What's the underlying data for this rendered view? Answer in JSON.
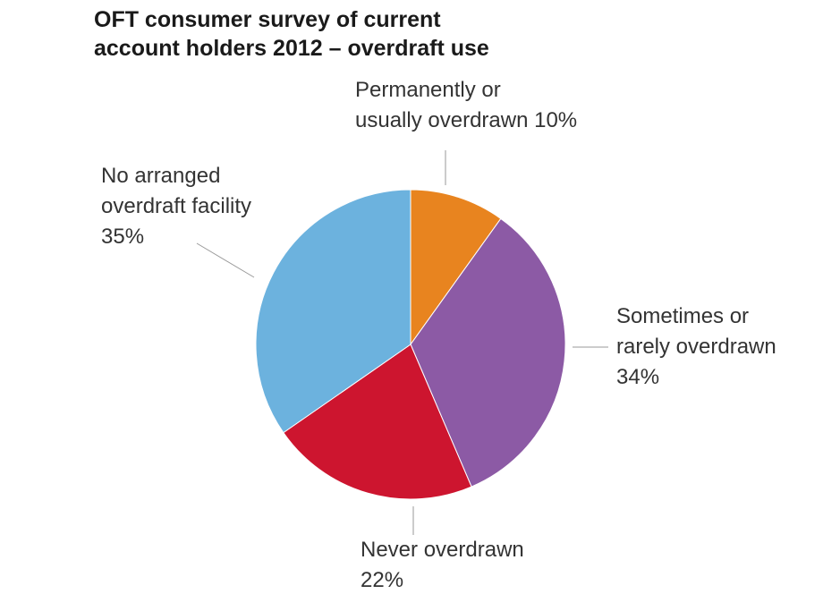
{
  "chart_data": {
    "type": "pie",
    "title_line1": "OFT consumer survey of current",
    "title_line2": "account holders 2012 – overdraft use",
    "slices": [
      {
        "label_line1": "Permanently or",
        "label_line2": "usually overdrawn 10%",
        "label_line3": "",
        "value": 10,
        "color": "#E8841F"
      },
      {
        "label_line1": "Sometimes or",
        "label_line2": "rarely overdrawn",
        "label_line3": "34%",
        "value": 34,
        "color": "#8C5AA5"
      },
      {
        "label_line1": "Never overdrawn",
        "label_line2": "22%",
        "label_line3": "",
        "value": 22,
        "color": "#CD152F"
      },
      {
        "label_line1": "No arranged",
        "label_line2": "overdraft facility",
        "label_line3": "35%",
        "value": 35,
        "color": "#6CB2DE"
      }
    ]
  }
}
